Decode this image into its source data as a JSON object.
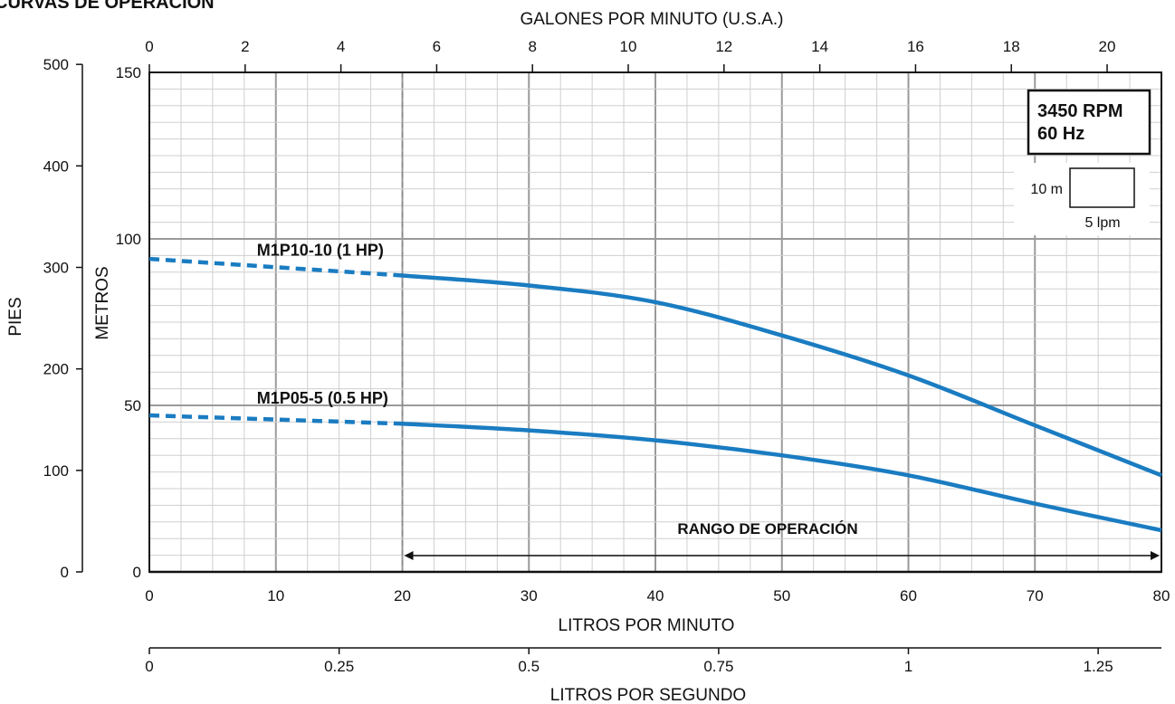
{
  "chart_data": {
    "type": "line",
    "title": "CURVAS DE OPERACIÓN",
    "xlabel": "LITROS POR MINUTO",
    "ylabel": "METROS",
    "xlim": [
      0,
      80
    ],
    "ylim": [
      0,
      150
    ],
    "x_ticks": [
      0,
      10,
      20,
      30,
      40,
      50,
      60,
      70,
      80
    ],
    "y_ticks": [
      0,
      50,
      100,
      150
    ],
    "grid": true,
    "secondary_axes": {
      "top": {
        "label": "GALONES POR MINUTO (U.S.A.)",
        "ticks": [
          0,
          2,
          4,
          6,
          8,
          10,
          12,
          14,
          16,
          18,
          20
        ]
      },
      "bottom2": {
        "label": "LITROS POR SEGUNDO",
        "ticks": [
          "0",
          "0.25",
          "0.5",
          "0.75",
          "1",
          "1.25"
        ]
      },
      "left2": {
        "label": "PIES",
        "ticks": [
          0,
          100,
          200,
          300,
          400,
          500
        ]
      }
    },
    "series": [
      {
        "name": "M1P10-10 (1 HP)",
        "color": "#1a7cc1",
        "dashed_segment": {
          "x": [
            0,
            20
          ],
          "y": [
            94,
            89
          ]
        },
        "x": [
          20,
          30,
          40,
          50,
          60,
          70,
          80
        ],
        "y": [
          89,
          86,
          81,
          71,
          59,
          44,
          29
        ]
      },
      {
        "name": "M1P05-5 (0.5 HP)",
        "color": "#1a7cc1",
        "dashed_segment": {
          "x": [
            0,
            20
          ],
          "y": [
            47,
            44.5
          ]
        },
        "x": [
          20,
          30,
          40,
          50,
          60,
          70,
          80
        ],
        "y": [
          44.5,
          42.5,
          39.5,
          35,
          29,
          20.5,
          12.5
        ]
      }
    ],
    "annotations": {
      "operating_range": {
        "label": "RANGO DE OPERACIÓN",
        "x_start": 20,
        "x_end": 80
      },
      "rpm_box": {
        "line1": "3450 RPM",
        "line2": "60 Hz"
      },
      "scale_box": {
        "vertical": "10 m",
        "horizontal": "5 lpm"
      }
    }
  }
}
